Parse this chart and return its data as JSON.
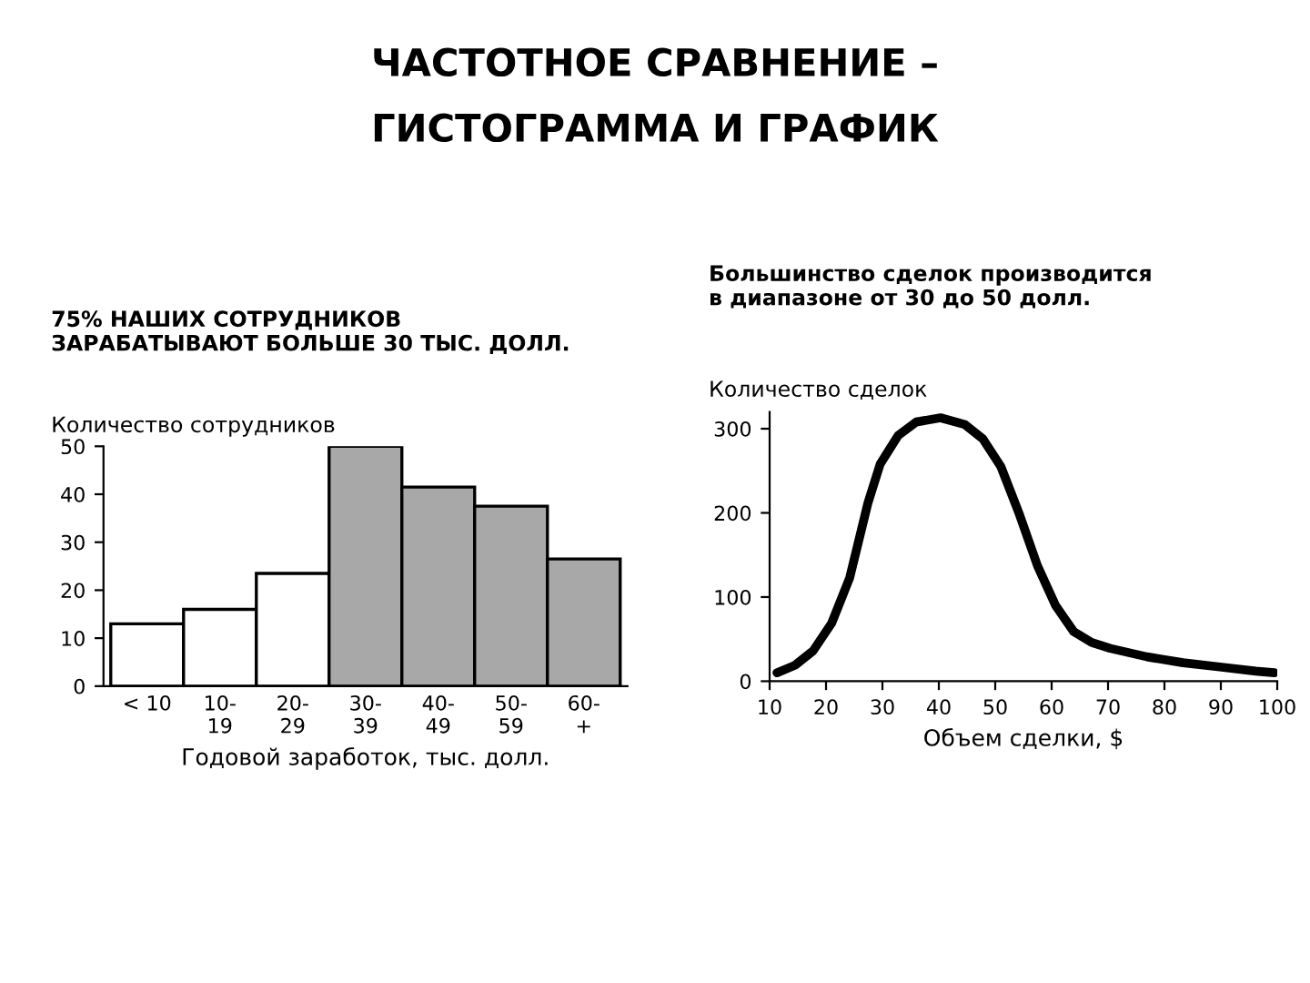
{
  "chart_data": [
    {
      "type": "bar",
      "title": "ЧАСТОТНОЕ СРАВНЕНИЕ –\nГИСТОГРАММА И ГРАФИК",
      "subtitle": "75% НАШИХ СОТРУДНИКОВ\nЗАРАБАТЫВАЮТ БОЛЬШЕ 30 ТЫС. ДОЛЛ.",
      "ylabel": "Количество сотрудников",
      "xlabel": "Годовой заработок, тыс. долл.",
      "categories": [
        "< 10",
        "10-\n19",
        "20-\n29",
        "30-\n39",
        "40-\n49",
        "50-\n59",
        "60-\n+"
      ],
      "values": [
        13,
        16,
        23.5,
        50,
        41.5,
        37.5,
        26.5
      ],
      "colors": [
        "#ffffff",
        "#ffffff",
        "#ffffff",
        "#a8a8a8",
        "#a8a8a8",
        "#a8a8a8",
        "#a8a8a8"
      ],
      "ylim": [
        0,
        50
      ],
      "yticks": [
        0,
        10,
        20,
        30,
        40,
        50
      ],
      "grid": false
    },
    {
      "type": "line",
      "subtitle": "Большинство сделок производится\nв диапазоне от 30 до 50 долл.",
      "ylabel": "Количество сделок",
      "xlabel": "Объем сделки, $",
      "series": [
        {
          "color": "#000000",
          "x": [
            11.3,
            14.5,
            17.7,
            21,
            24.2,
            27.4,
            29.6,
            32.8,
            36,
            40.3,
            44.6,
            47.8,
            51,
            54.3,
            57.5,
            60.7,
            63.9,
            67.1,
            70.4,
            76.9,
            83.3,
            89.8,
            96.2,
            99.5
          ],
          "values": [
            10,
            19,
            36,
            69,
            123,
            211,
            258,
            292,
            308,
            313,
            305,
            288,
            255,
            198,
            137,
            90,
            59,
            46,
            39,
            29,
            22,
            17,
            12,
            10
          ]
        }
      ],
      "xlim": [
        10,
        100
      ],
      "xticks": [
        10,
        20,
        30,
        40,
        50,
        60,
        70,
        80,
        90,
        100
      ],
      "ylim": [
        0,
        320
      ],
      "yticks": [
        0,
        100,
        200,
        300
      ],
      "grid": false,
      "marker": "none",
      "line_style": "solid"
    }
  ]
}
